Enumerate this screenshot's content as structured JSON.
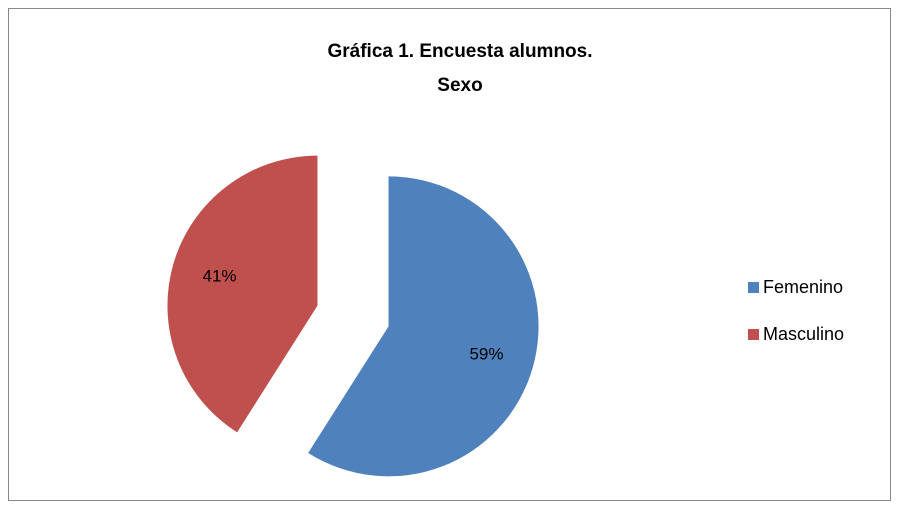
{
  "chart_data": {
    "type": "pie",
    "title": [
      "Gráfica 1. Encuesta alumnos.",
      "Sexo"
    ],
    "categories": [
      "Femenino",
      "Masculino"
    ],
    "values": [
      59,
      41
    ],
    "value_labels": [
      "59%",
      "41%"
    ],
    "colors": [
      "#4f81bd",
      "#c0504d"
    ],
    "legend": "right"
  }
}
